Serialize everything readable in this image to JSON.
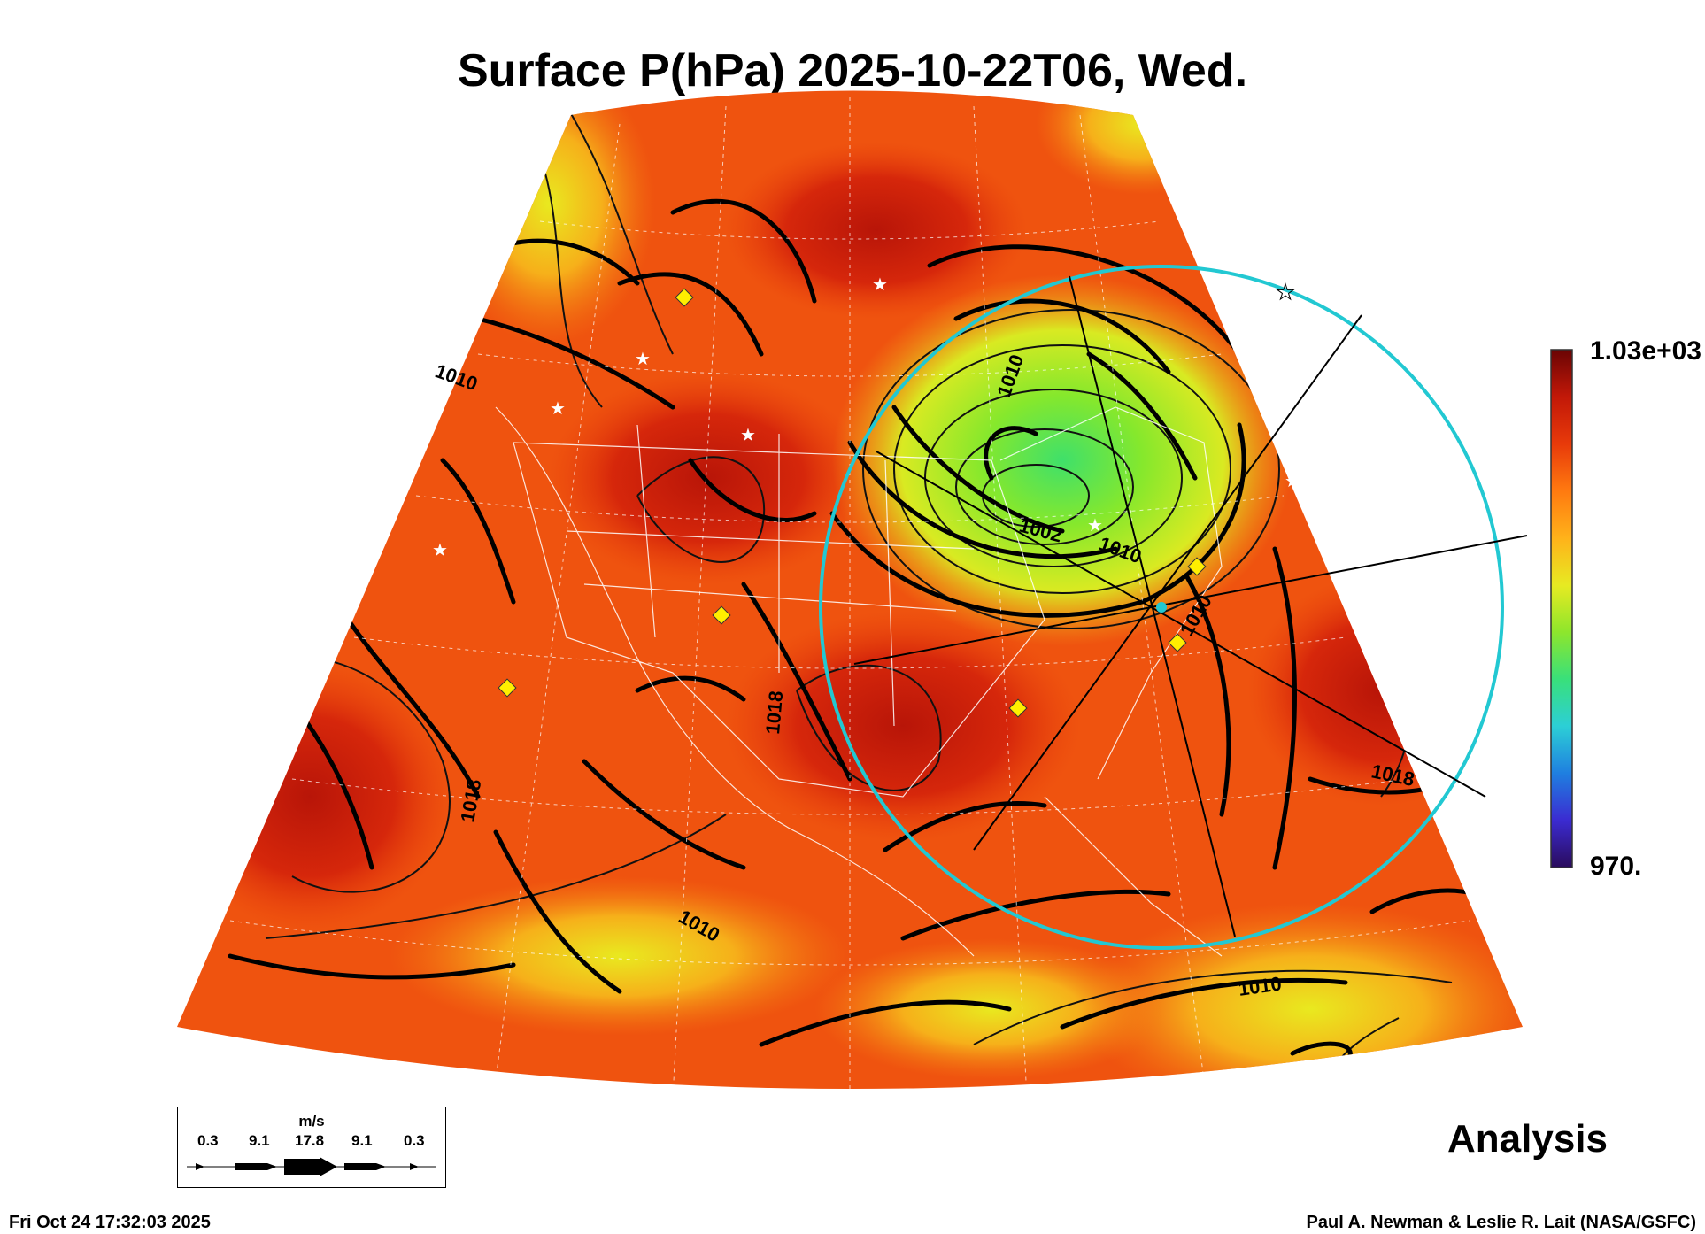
{
  "title": "Surface P(hPa) 2025-10-22T06, Wed.",
  "colorbar": {
    "max_label": "1.03e+03",
    "min_label": "970.",
    "colors": [
      "#2a0b5c",
      "#3b2bd1",
      "#1f7fe0",
      "#2ccfd6",
      "#39e07a",
      "#8ee62c",
      "#e7ea22",
      "#ffb21a",
      "#ff7a10",
      "#e83a0a",
      "#c21808",
      "#6a0404"
    ]
  },
  "contour_labels": [
    "1010",
    "1010",
    "1018",
    "1018",
    "1010",
    "1010",
    "1018",
    "1010",
    "1002",
    "1010"
  ],
  "legend": {
    "unit": "m/s",
    "values": [
      "0.3",
      "9.1",
      "17.8",
      "9.1",
      "0.3"
    ]
  },
  "analysis_label": "Analysis",
  "timestamp": "Fri Oct 24 17:32:03 2025",
  "credit": "Paul A. Newman & Leslie R. Lait (NASA/GSFC)",
  "colors": {
    "map_base": "#f0500f",
    "low_center": "#7ce82a",
    "high_dark": "#c41d0a",
    "edge_yellow": "#f2c21a",
    "circle": "#22c8d2",
    "marker": "#ffef00"
  }
}
